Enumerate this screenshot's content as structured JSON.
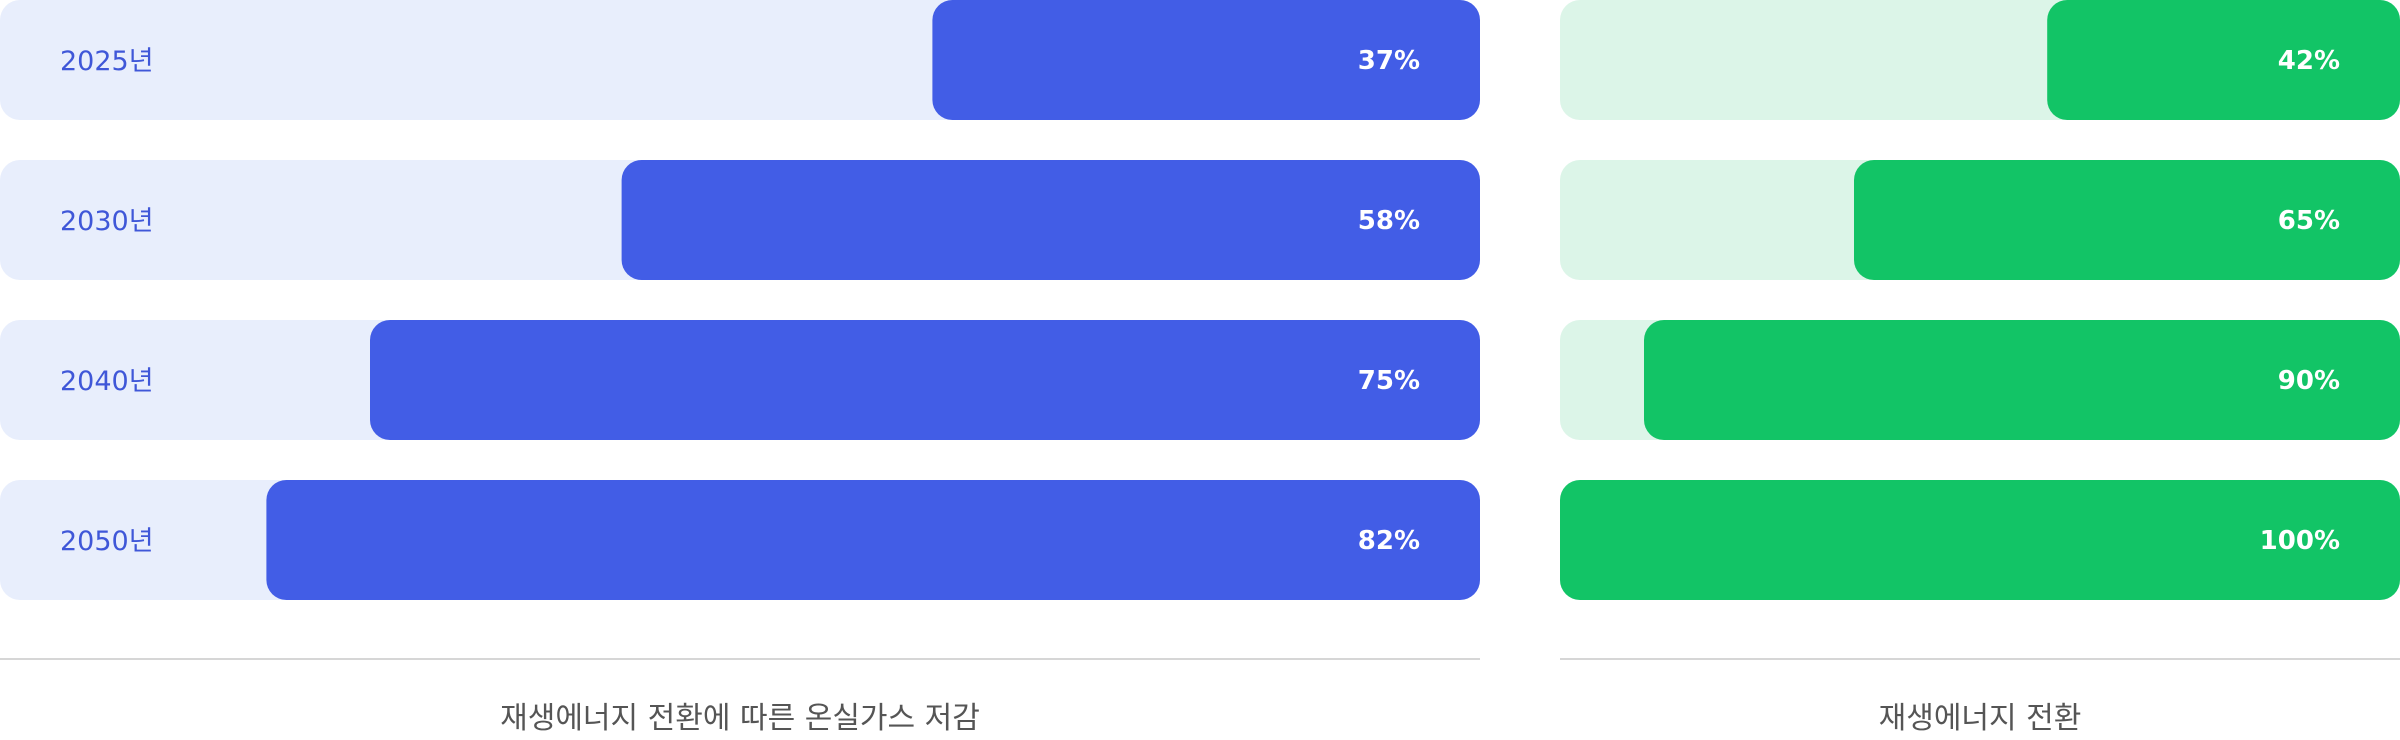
{
  "chart_data": [
    {
      "type": "bar",
      "orientation": "horizontal",
      "categories": [
        "2025년",
        "2030년",
        "2040년",
        "2050년"
      ],
      "values": [
        37,
        58,
        75,
        82
      ],
      "value_labels": [
        "37%",
        "58%",
        "75%",
        "82%"
      ],
      "xlim": [
        0,
        100
      ],
      "caption": "재생에너지 전환에 따른 온실가스 저감",
      "colors": {
        "bar": "#425de6",
        "track": "#e8eefc",
        "category_text": "#3f57d8",
        "value_text": "#ffffff"
      }
    },
    {
      "type": "bar",
      "orientation": "horizontal",
      "categories": [
        "2025년",
        "2030년",
        "2040년",
        "2050년"
      ],
      "values": [
        42,
        65,
        90,
        100
      ],
      "value_labels": [
        "42%",
        "65%",
        "90%",
        "100%"
      ],
      "xlim": [
        0,
        100
      ],
      "caption": "재생에너지 전환",
      "colors": {
        "bar": "#12c466",
        "track": "#dcf5e8",
        "value_text": "#ffffff"
      }
    }
  ],
  "colors": {
    "caption_text": "#555555",
    "divider": "#d6d6d6"
  }
}
